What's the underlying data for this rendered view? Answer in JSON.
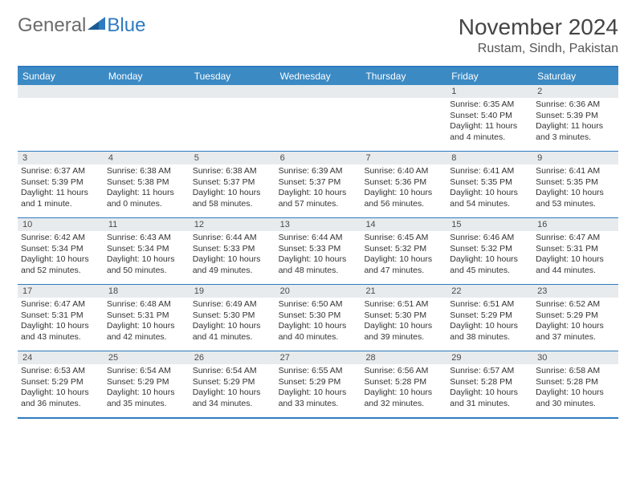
{
  "header": {
    "logo": {
      "text1": "General",
      "text2": "Blue"
    },
    "title": "November 2024",
    "location": "Rustam, Sindh, Pakistan"
  },
  "colors": {
    "brand_blue": "#3b8ac4",
    "rule_blue": "#2f7ac0",
    "daynum_bg": "#e8ebed",
    "text": "#333333",
    "header_text": "#ffffff"
  },
  "day_of_week": [
    "Sunday",
    "Monday",
    "Tuesday",
    "Wednesday",
    "Thursday",
    "Friday",
    "Saturday"
  ],
  "weeks": [
    [
      {
        "day": "",
        "sunrise": "",
        "sunset": "",
        "daylight": ""
      },
      {
        "day": "",
        "sunrise": "",
        "sunset": "",
        "daylight": ""
      },
      {
        "day": "",
        "sunrise": "",
        "sunset": "",
        "daylight": ""
      },
      {
        "day": "",
        "sunrise": "",
        "sunset": "",
        "daylight": ""
      },
      {
        "day": "",
        "sunrise": "",
        "sunset": "",
        "daylight": ""
      },
      {
        "day": "1",
        "sunrise": "6:35 AM",
        "sunset": "5:40 PM",
        "daylight": "11 hours and 4 minutes."
      },
      {
        "day": "2",
        "sunrise": "6:36 AM",
        "sunset": "5:39 PM",
        "daylight": "11 hours and 3 minutes."
      }
    ],
    [
      {
        "day": "3",
        "sunrise": "6:37 AM",
        "sunset": "5:39 PM",
        "daylight": "11 hours and 1 minute."
      },
      {
        "day": "4",
        "sunrise": "6:38 AM",
        "sunset": "5:38 PM",
        "daylight": "11 hours and 0 minutes."
      },
      {
        "day": "5",
        "sunrise": "6:38 AM",
        "sunset": "5:37 PM",
        "daylight": "10 hours and 58 minutes."
      },
      {
        "day": "6",
        "sunrise": "6:39 AM",
        "sunset": "5:37 PM",
        "daylight": "10 hours and 57 minutes."
      },
      {
        "day": "7",
        "sunrise": "6:40 AM",
        "sunset": "5:36 PM",
        "daylight": "10 hours and 56 minutes."
      },
      {
        "day": "8",
        "sunrise": "6:41 AM",
        "sunset": "5:35 PM",
        "daylight": "10 hours and 54 minutes."
      },
      {
        "day": "9",
        "sunrise": "6:41 AM",
        "sunset": "5:35 PM",
        "daylight": "10 hours and 53 minutes."
      }
    ],
    [
      {
        "day": "10",
        "sunrise": "6:42 AM",
        "sunset": "5:34 PM",
        "daylight": "10 hours and 52 minutes."
      },
      {
        "day": "11",
        "sunrise": "6:43 AM",
        "sunset": "5:34 PM",
        "daylight": "10 hours and 50 minutes."
      },
      {
        "day": "12",
        "sunrise": "6:44 AM",
        "sunset": "5:33 PM",
        "daylight": "10 hours and 49 minutes."
      },
      {
        "day": "13",
        "sunrise": "6:44 AM",
        "sunset": "5:33 PM",
        "daylight": "10 hours and 48 minutes."
      },
      {
        "day": "14",
        "sunrise": "6:45 AM",
        "sunset": "5:32 PM",
        "daylight": "10 hours and 47 minutes."
      },
      {
        "day": "15",
        "sunrise": "6:46 AM",
        "sunset": "5:32 PM",
        "daylight": "10 hours and 45 minutes."
      },
      {
        "day": "16",
        "sunrise": "6:47 AM",
        "sunset": "5:31 PM",
        "daylight": "10 hours and 44 minutes."
      }
    ],
    [
      {
        "day": "17",
        "sunrise": "6:47 AM",
        "sunset": "5:31 PM",
        "daylight": "10 hours and 43 minutes."
      },
      {
        "day": "18",
        "sunrise": "6:48 AM",
        "sunset": "5:31 PM",
        "daylight": "10 hours and 42 minutes."
      },
      {
        "day": "19",
        "sunrise": "6:49 AM",
        "sunset": "5:30 PM",
        "daylight": "10 hours and 41 minutes."
      },
      {
        "day": "20",
        "sunrise": "6:50 AM",
        "sunset": "5:30 PM",
        "daylight": "10 hours and 40 minutes."
      },
      {
        "day": "21",
        "sunrise": "6:51 AM",
        "sunset": "5:30 PM",
        "daylight": "10 hours and 39 minutes."
      },
      {
        "day": "22",
        "sunrise": "6:51 AM",
        "sunset": "5:29 PM",
        "daylight": "10 hours and 38 minutes."
      },
      {
        "day": "23",
        "sunrise": "6:52 AM",
        "sunset": "5:29 PM",
        "daylight": "10 hours and 37 minutes."
      }
    ],
    [
      {
        "day": "24",
        "sunrise": "6:53 AM",
        "sunset": "5:29 PM",
        "daylight": "10 hours and 36 minutes."
      },
      {
        "day": "25",
        "sunrise": "6:54 AM",
        "sunset": "5:29 PM",
        "daylight": "10 hours and 35 minutes."
      },
      {
        "day": "26",
        "sunrise": "6:54 AM",
        "sunset": "5:29 PM",
        "daylight": "10 hours and 34 minutes."
      },
      {
        "day": "27",
        "sunrise": "6:55 AM",
        "sunset": "5:29 PM",
        "daylight": "10 hours and 33 minutes."
      },
      {
        "day": "28",
        "sunrise": "6:56 AM",
        "sunset": "5:28 PM",
        "daylight": "10 hours and 32 minutes."
      },
      {
        "day": "29",
        "sunrise": "6:57 AM",
        "sunset": "5:28 PM",
        "daylight": "10 hours and 31 minutes."
      },
      {
        "day": "30",
        "sunrise": "6:58 AM",
        "sunset": "5:28 PM",
        "daylight": "10 hours and 30 minutes."
      }
    ]
  ],
  "labels": {
    "sunrise": "Sunrise:",
    "sunset": "Sunset:",
    "daylight": "Daylight:"
  }
}
